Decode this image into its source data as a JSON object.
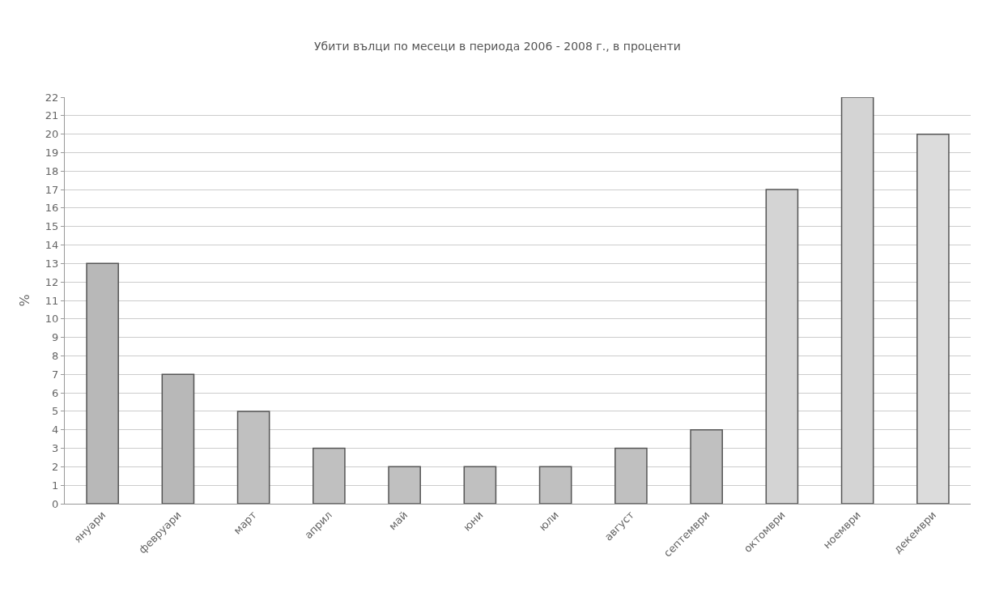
{
  "chart_data": {
    "type": "bar",
    "title": "Убити вълци по месеци в периода 2006 - 2008 г., в проценти",
    "ylabel": "%",
    "categories": [
      "януари",
      "февруари",
      "март",
      "април",
      "май",
      "юни",
      "юли",
      "август",
      "септември",
      "октомври",
      "ноември",
      "декември"
    ],
    "values": [
      13,
      7,
      5,
      3,
      2,
      2,
      2,
      3,
      4,
      17,
      22,
      20
    ],
    "colors": [
      "#b8b8b8",
      "#b8b8b8",
      "#c0c0c0",
      "#c0c0c0",
      "#c0c0c0",
      "#c0c0c0",
      "#c0c0c0",
      "#c0c0c0",
      "#c0c0c0",
      "#d4d4d4",
      "#d4d4d4",
      "#dcdcdc"
    ],
    "ylim": [
      0,
      22
    ],
    "yticks": [
      0,
      1,
      2,
      3,
      4,
      5,
      6,
      7,
      8,
      9,
      10,
      11,
      12,
      13,
      14,
      15,
      16,
      17,
      18,
      19,
      20,
      21,
      22
    ],
    "grid": "y"
  }
}
